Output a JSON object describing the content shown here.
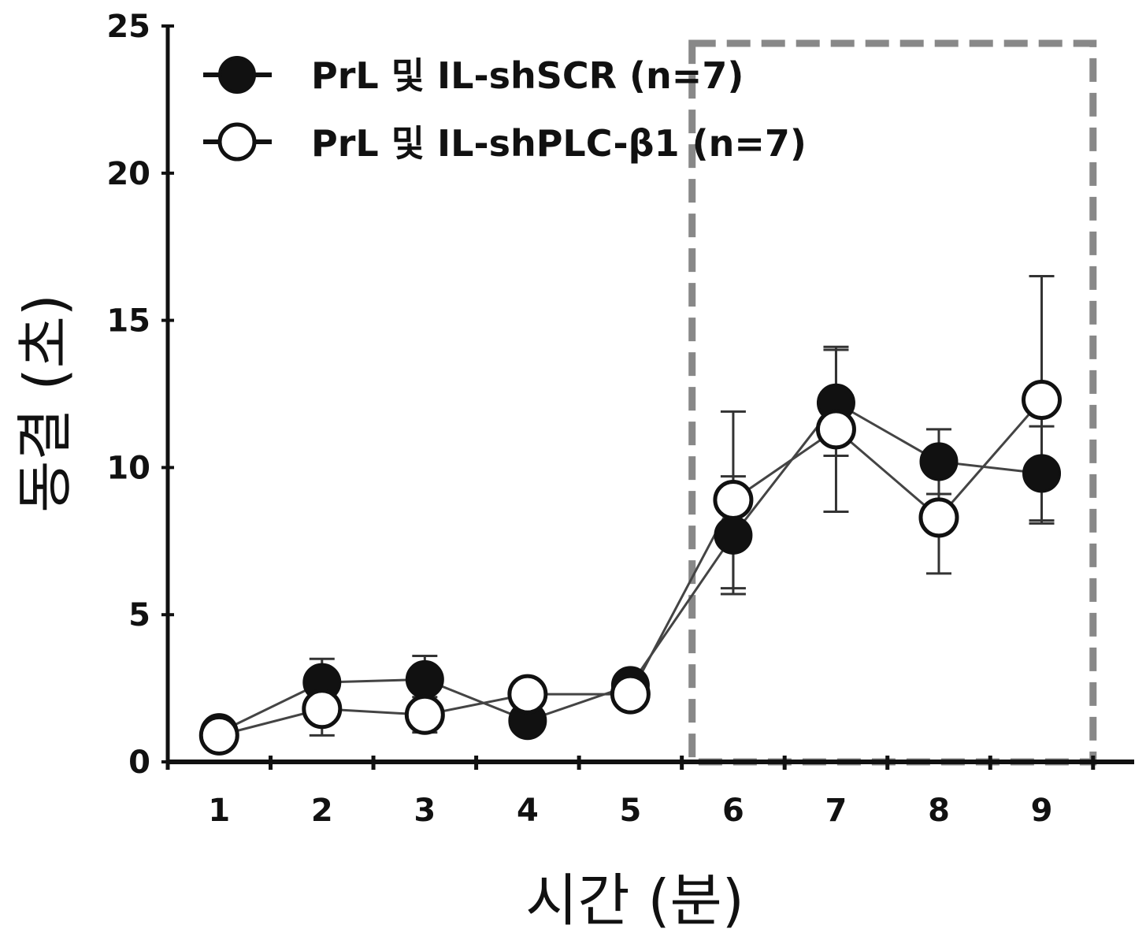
{
  "chart_data": {
    "type": "line",
    "title": "",
    "xlabel": "시간 (분)",
    "ylabel": "동결 (초)",
    "x": [
      1,
      2,
      3,
      4,
      5,
      6,
      7,
      8,
      9
    ],
    "xticks": [
      "1",
      "2",
      "3",
      "4",
      "5",
      "6",
      "7",
      "8",
      "9"
    ],
    "yticks": [
      "0",
      "5",
      "10",
      "15",
      "20",
      "25"
    ],
    "ylim": [
      0,
      25
    ],
    "xlim": [
      0.5,
      9.9
    ],
    "grid": false,
    "legend_position": "top-left",
    "highlight_region": {
      "x_start": 5.6,
      "x_end": 9.5,
      "style": "dashed-box",
      "color": "#888888"
    },
    "series": [
      {
        "name": "PrL 및 IL-shSCR (n=7)",
        "marker": "filled-circle",
        "color": "#111111",
        "values": [
          1.0,
          2.7,
          2.8,
          1.4,
          2.6,
          7.7,
          12.2,
          10.2,
          9.8
        ],
        "errors": [
          0.3,
          0.8,
          0.8,
          0.3,
          0.3,
          2.0,
          1.8,
          1.1,
          1.6
        ]
      },
      {
        "name": "PrL 및 IL-shPLC-β1 (n=7)",
        "marker": "open-circle",
        "color": "#111111",
        "values": [
          0.9,
          1.8,
          1.6,
          2.3,
          2.3,
          8.9,
          11.3,
          8.3,
          12.3
        ],
        "errors": [
          0.3,
          0.9,
          0.6,
          0.3,
          0.3,
          3.0,
          2.8,
          1.9,
          4.2
        ]
      }
    ]
  }
}
